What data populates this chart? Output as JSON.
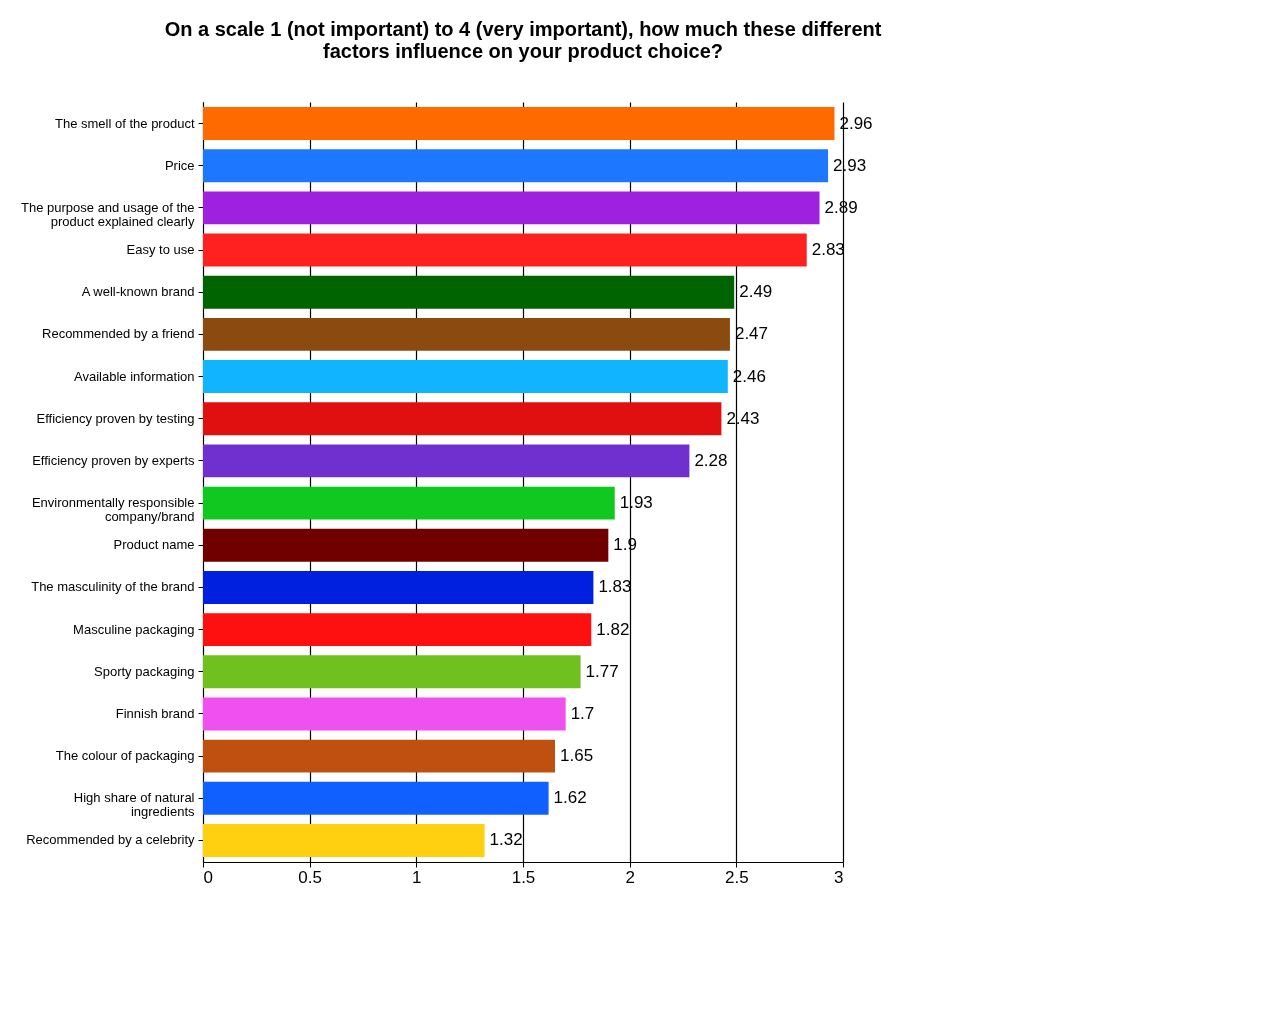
{
  "chart_data": {
    "type": "bar",
    "orientation": "horizontal",
    "title": "On a scale 1 (not important) to 4 (very important), how much these different factors influence on your product choice?",
    "categories": [
      "The smell of the product",
      "Price",
      "The purpose and usage of the product explained clearly",
      "Easy to use",
      "A well-known brand",
      "Recommended by a friend",
      "Available information",
      "Efficiency proven by testing",
      "Efficiency proven by experts",
      "Environmentally responsible company/brand",
      "Product name",
      "The masculinity of the brand",
      "Masculine packaging",
      "Sporty packaging",
      "Finnish brand",
      "The colour of packaging",
      "High share of natural ingredients",
      "Recommended by a celebrity"
    ],
    "values": [
      2.96,
      2.93,
      2.89,
      2.83,
      2.49,
      2.47,
      2.46,
      2.43,
      2.28,
      1.93,
      1.9,
      1.83,
      1.82,
      1.77,
      1.7,
      1.65,
      1.62,
      1.32
    ],
    "colors": [
      "#ff6a00",
      "#1e78ff",
      "#a020e0",
      "#ff2020",
      "#006400",
      "#8b4a10",
      "#10b4ff",
      "#e01010",
      "#7030d0",
      "#10c820",
      "#700000",
      "#0020e0",
      "#ff1010",
      "#70c020",
      "#f050f0",
      "#c05010",
      "#1060ff",
      "#ffd010"
    ],
    "xlim": [
      0,
      3
    ],
    "xticks": [
      0,
      0.5,
      1,
      1.5,
      2,
      2.5,
      3
    ],
    "grid": "x",
    "data_labels": true
  }
}
